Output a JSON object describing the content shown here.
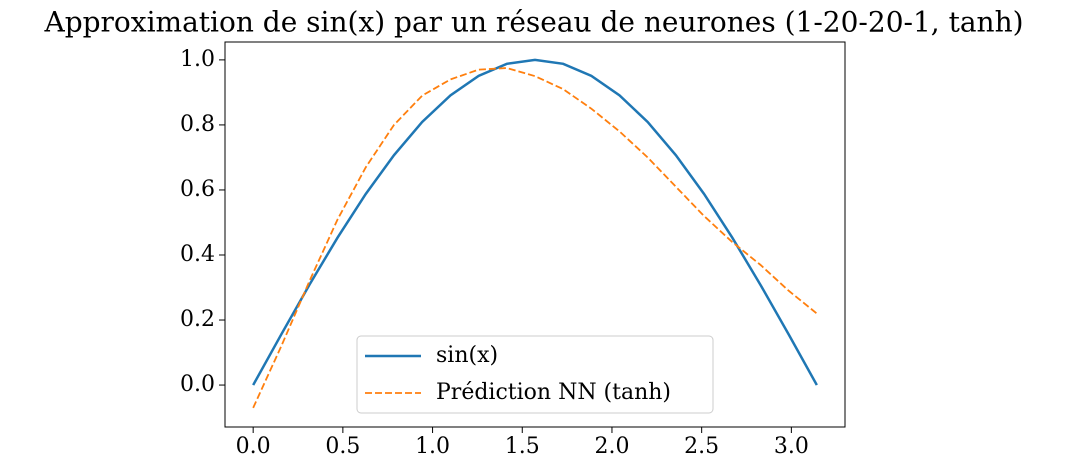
{
  "chart_data": {
    "type": "line",
    "title": "Approximation de sin(x) par un réseau de neurones (1-20-20-1, tanh)",
    "x": [
      0,
      0.157,
      0.314,
      0.471,
      0.628,
      0.785,
      0.942,
      1.1,
      1.257,
      1.414,
      1.571,
      1.728,
      1.885,
      2.042,
      2.199,
      2.356,
      2.513,
      2.67,
      2.827,
      2.985,
      3.142
    ],
    "series": [
      {
        "name": "sin(x)",
        "color": "#1f77b4",
        "linestyle": "solid",
        "values": [
          0,
          0.156,
          0.309,
          0.454,
          0.588,
          0.707,
          0.809,
          0.891,
          0.951,
          0.988,
          1,
          0.988,
          0.951,
          0.891,
          0.809,
          0.707,
          0.588,
          0.454,
          0.309,
          0.156,
          0
        ]
      },
      {
        "name": "Prédiction NN (tanh)",
        "color": "#ff7f0e",
        "linestyle": "dashed",
        "values": [
          -0.07,
          0.12,
          0.32,
          0.51,
          0.67,
          0.8,
          0.89,
          0.94,
          0.97,
          0.975,
          0.95,
          0.91,
          0.85,
          0.78,
          0.7,
          0.61,
          0.52,
          0.44,
          0.37,
          0.29,
          0.22
        ]
      }
    ],
    "xlim": [
      -0.157,
      3.299
    ],
    "ylim": [
      -0.129,
      1.055
    ],
    "xticks": [
      {
        "value": 0,
        "label": "0.0"
      },
      0.5,
      {
        "value": 1,
        "label": "1.0"
      },
      1.5,
      {
        "value": 2,
        "label": "2.0"
      },
      2.5,
      {
        "value": 3,
        "label": "3.0"
      }
    ],
    "yticks": [
      {
        "value": 0,
        "label": "0.0"
      },
      0.2,
      0.4,
      0.6,
      0.8,
      {
        "value": 1,
        "label": "1.0"
      }
    ],
    "legend": "lower center"
  }
}
